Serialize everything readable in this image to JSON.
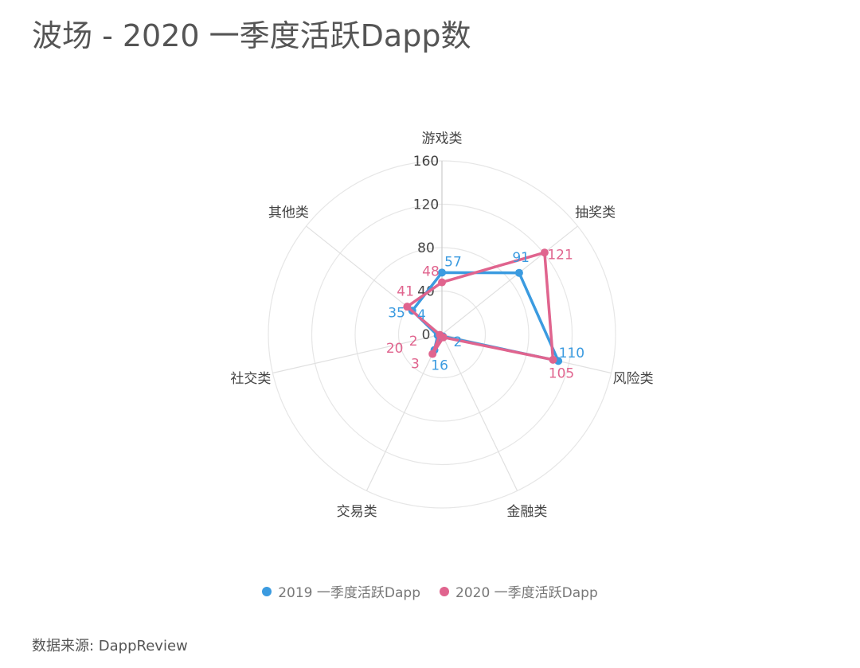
{
  "chart_data": {
    "type": "radar",
    "title": "波场 - 2020 一季度活跃Dapp数",
    "categories": [
      "游戏类",
      "抽奖类",
      "风险类",
      "金融类",
      "交易类",
      "社交类",
      "其他类"
    ],
    "rlim": [
      0,
      160
    ],
    "ticks": [
      0,
      40,
      80,
      120,
      160
    ],
    "grid": true,
    "legend_position": "bottom",
    "series": [
      {
        "name": "2019 一季度活跃Dapp",
        "color": "#3b9be0",
        "values": [
          57,
          91,
          110,
          2,
          16,
          4,
          35
        ]
      },
      {
        "name": "2020 一季度活跃Dapp",
        "color": "#e0648e",
        "values": [
          48,
          121,
          105,
          3,
          20,
          2,
          41
        ]
      }
    ],
    "source": "数据来源: DappReview"
  }
}
